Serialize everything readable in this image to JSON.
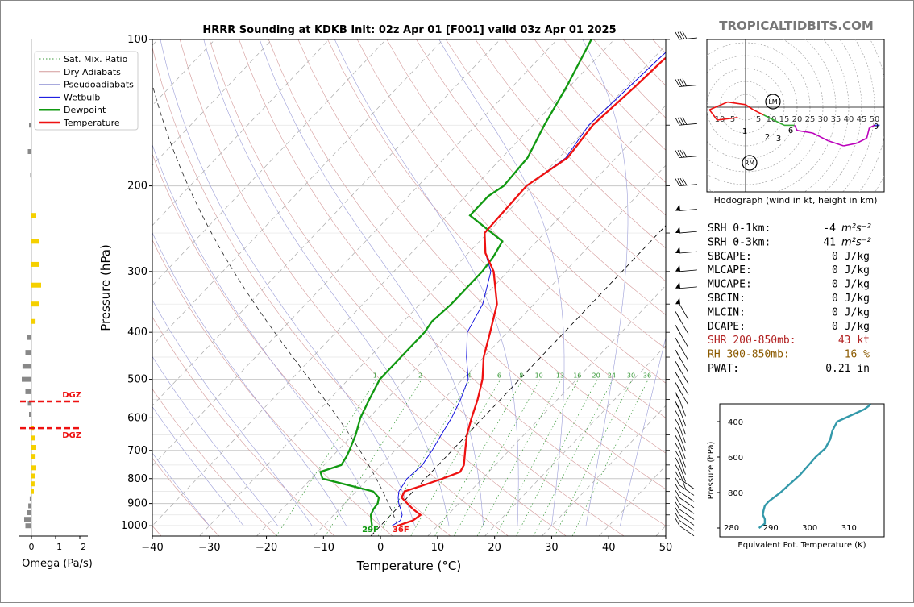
{
  "header": {
    "title": "HRRR Sounding at KDKB Init: 02z Apr 01 [F001] valid 03z Apr 01 2025",
    "watermark": "TROPICALTIDBITS.COM"
  },
  "chart_data": [
    {
      "type": "line",
      "name": "skew-t",
      "xlabel": "Temperature (°C)",
      "ylabel": "Pressure (hPa)",
      "xlim": [
        -40,
        50
      ],
      "ylim": [
        1050,
        100
      ],
      "y_scale": "log",
      "x_ticks": [
        "−40",
        "−30",
        "−20",
        "−10",
        "0",
        "10",
        "20",
        "30",
        "40",
        "50"
      ],
      "y_ticks": [
        "100",
        "200",
        "300",
        "400",
        "500",
        "600",
        "700",
        "800",
        "900",
        "1000"
      ],
      "legend": [
        "Sat. Mix. Ratio",
        "Dry Adiabats",
        "Pseudoadiabats",
        "Wetbulb",
        "Dewpoint",
        "Temperature"
      ],
      "legend_position": "top-left",
      "mixing_ratio_labels": [
        "1",
        "2",
        "4",
        "6",
        "8",
        "10",
        "13",
        "16",
        "20",
        "24",
        "30",
        "36"
      ],
      "surface_labels": {
        "dewpoint": "29F",
        "temperature": "36F"
      },
      "series": [
        {
          "name": "Temperature",
          "color": "#ee1111",
          "points": [
            [
              1000,
              3.0
            ],
            [
              975,
              4.8
            ],
            [
              950,
              5.2
            ],
            [
              925,
              3.0
            ],
            [
              900,
              1.0
            ],
            [
              875,
              -1.0
            ],
            [
              850,
              -1.5
            ],
            [
              825,
              0.8
            ],
            [
              800,
              3.0
            ],
            [
              775,
              5.0
            ],
            [
              750,
              4.5
            ],
            [
              700,
              2.3
            ],
            [
              650,
              0.0
            ],
            [
              600,
              -2.0
            ],
            [
              550,
              -4.0
            ],
            [
              500,
              -6.5
            ],
            [
              450,
              -10.0
            ],
            [
              400,
              -13.0
            ],
            [
              350,
              -16.5
            ],
            [
              300,
              -22.5
            ],
            [
              275,
              -27.0
            ],
            [
              250,
              -30.5
            ],
            [
              200,
              -31.0
            ],
            [
              175,
              -28.5
            ],
            [
              150,
              -29.5
            ],
            [
              125,
              -28.5
            ],
            [
              110,
              -28.0
            ],
            [
              100,
              -27.0
            ]
          ]
        },
        {
          "name": "Dewpoint",
          "color": "#119911",
          "points": [
            [
              1000,
              -1.5
            ],
            [
              975,
              -2.5
            ],
            [
              950,
              -3.5
            ],
            [
              925,
              -4.0
            ],
            [
              900,
              -4.2
            ],
            [
              875,
              -5.0
            ],
            [
              850,
              -7.0
            ],
            [
              800,
              -18.0
            ],
            [
              775,
              -19.5
            ],
            [
              750,
              -17.0
            ],
            [
              720,
              -17.5
            ],
            [
              700,
              -18.0
            ],
            [
              650,
              -19.5
            ],
            [
              600,
              -21.5
            ],
            [
              550,
              -23.0
            ],
            [
              500,
              -24.5
            ],
            [
              450,
              -24.5
            ],
            [
              400,
              -24.5
            ],
            [
              380,
              -25.0
            ],
            [
              350,
              -24.5
            ],
            [
              300,
              -24.5
            ],
            [
              280,
              -25.0
            ],
            [
              260,
              -26.0
            ],
            [
              230,
              -36.0
            ],
            [
              210,
              -36.0
            ],
            [
              200,
              -35.0
            ],
            [
              175,
              -35.5
            ],
            [
              150,
              -38.0
            ],
            [
              125,
              -40.5
            ],
            [
              110,
              -42.5
            ],
            [
              100,
              -44.0
            ]
          ]
        },
        {
          "name": "Wetbulb",
          "color": "#0000dd",
          "points": [
            [
              1000,
              2.0
            ],
            [
              975,
              2.6
            ],
            [
              950,
              2.0
            ],
            [
              925,
              0.8
            ],
            [
              900,
              -0.5
            ],
            [
              875,
              -1.6
            ],
            [
              850,
              -2.5
            ],
            [
              800,
              -3.2
            ],
            [
              750,
              -2.8
            ],
            [
              700,
              -3.5
            ],
            [
              650,
              -4.5
            ],
            [
              600,
              -5.5
            ],
            [
              550,
              -7.0
            ],
            [
              500,
              -9.0
            ],
            [
              450,
              -13.0
            ],
            [
              400,
              -17.0
            ],
            [
              350,
              -19.0
            ],
            [
              300,
              -23.0
            ],
            [
              275,
              -27.0
            ],
            [
              250,
              -30.5
            ],
            [
              200,
              -31.0
            ],
            [
              175,
              -28.8
            ],
            [
              150,
              -30.2
            ],
            [
              125,
              -29.5
            ],
            [
              110,
              -29.0
            ],
            [
              100,
              -28.5
            ]
          ]
        }
      ]
    },
    {
      "type": "line",
      "name": "hodograph",
      "title": "Hodograph (wind in kt, height in km)",
      "rings": [
        "5",
        "10",
        "15",
        "20",
        "25",
        "30",
        "35",
        "40",
        "45",
        "50"
      ],
      "left_rings": [
        "10",
        "5"
      ],
      "markers": [
        "LM",
        "RM"
      ],
      "height_labels": [
        "1",
        "2",
        "3",
        "6",
        "9"
      ],
      "points": [
        [
          -3,
          -4
        ],
        [
          -11,
          -5
        ],
        [
          -14,
          -1
        ],
        [
          -7,
          2
        ],
        [
          0,
          1
        ],
        [
          3,
          -1
        ],
        [
          7,
          -3
        ],
        [
          11,
          -5
        ],
        [
          15,
          -7
        ],
        [
          19,
          -7
        ],
        [
          20,
          -9
        ],
        [
          26,
          -10
        ],
        [
          32,
          -13
        ],
        [
          38,
          -15
        ],
        [
          43,
          -14
        ],
        [
          47,
          -12
        ],
        [
          48,
          -8
        ],
        [
          50,
          -7
        ],
        [
          52,
          -7
        ]
      ]
    },
    {
      "type": "bar",
      "name": "omega",
      "xlabel": "Omega (Pa/s)",
      "x_ticks": [
        "0",
        "−1",
        "−2"
      ],
      "dgz_label": "DGZ",
      "dgz_pressures": [
        555,
        630
      ],
      "pressures": [
        150,
        170,
        190,
        230,
        260,
        290,
        320,
        350,
        380,
        410,
        440,
        470,
        500,
        530,
        560,
        590,
        630,
        660,
        690,
        720,
        760,
        790,
        820,
        850,
        880,
        910,
        940,
        970,
        1000
      ],
      "values": [
        0.05,
        0.1,
        0.0,
        -0.15,
        -0.25,
        -0.28,
        -0.35,
        -0.25,
        -0.12,
        0.15,
        0.2,
        0.32,
        0.35,
        0.2,
        0.1,
        0.05,
        -0.05,
        -0.1,
        -0.15,
        -0.12,
        -0.15,
        -0.1,
        -0.08,
        -0.05,
        0.02,
        0.08,
        0.15,
        0.25,
        0.2
      ]
    },
    {
      "type": "line",
      "name": "theta-e",
      "xlabel": "Equivalent Pot. Temperature (K)",
      "ylabel": "Pressure (hPa)",
      "x_ticks": [
        "280",
        "290",
        "300",
        "310"
      ],
      "y_ticks": [
        "400",
        "600",
        "800"
      ],
      "color": "#3399aa",
      "points": [
        [
          1000,
          287.0
        ],
        [
          975,
          288.5
        ],
        [
          950,
          288.5
        ],
        [
          925,
          288.0
        ],
        [
          900,
          288.2
        ],
        [
          875,
          288.5
        ],
        [
          850,
          289.5
        ],
        [
          800,
          292.5
        ],
        [
          750,
          295.0
        ],
        [
          700,
          297.5
        ],
        [
          650,
          299.5
        ],
        [
          600,
          301.5
        ],
        [
          550,
          304.0
        ],
        [
          500,
          305.2
        ],
        [
          450,
          305.8
        ],
        [
          400,
          307.0
        ],
        [
          380,
          309.0
        ],
        [
          350,
          312.0
        ],
        [
          330,
          314.0
        ],
        [
          310,
          315.2
        ],
        [
          300,
          315.5
        ]
      ]
    }
  ],
  "stats": [
    {
      "label": "SRH 0-1km:",
      "value": "-4",
      "unit": "m²s⁻²",
      "color": "#000000"
    },
    {
      "label": "SRH 0-3km:",
      "value": "41",
      "unit": "m²s⁻²",
      "color": "#000000"
    },
    {
      "label": "SBCAPE:",
      "value": "0 J/kg",
      "unit": "",
      "color": "#000000"
    },
    {
      "label": "MLCAPE:",
      "value": "0 J/kg",
      "unit": "",
      "color": "#000000"
    },
    {
      "label": "MUCAPE:",
      "value": "0 J/kg",
      "unit": "",
      "color": "#000000"
    },
    {
      "label": "SBCIN:",
      "value": "0 J/kg",
      "unit": "",
      "color": "#000000"
    },
    {
      "label": "MLCIN:",
      "value": "0 J/kg",
      "unit": "",
      "color": "#000000"
    },
    {
      "label": "DCAPE:",
      "value": "0 J/kg",
      "unit": "",
      "color": "#000000"
    },
    {
      "label": "SHR 200-850mb:",
      "value": "43 kt",
      "unit": "",
      "color": "#b22222"
    },
    {
      "label": "RH 300-850mb:",
      "value": "16 %",
      "unit": "",
      "color": "#8b5a00"
    },
    {
      "label": "PWAT:",
      "value": "0.21 in",
      "unit": "",
      "color": "#000000"
    }
  ],
  "colors": {
    "temperature": "#ee1111",
    "dewpoint": "#119911",
    "wetbulb": "#0000dd",
    "theta_e": "#3399aa",
    "dgz": "#ee1111",
    "omega_pos": "#888888",
    "omega_neg": "#f5d000"
  }
}
